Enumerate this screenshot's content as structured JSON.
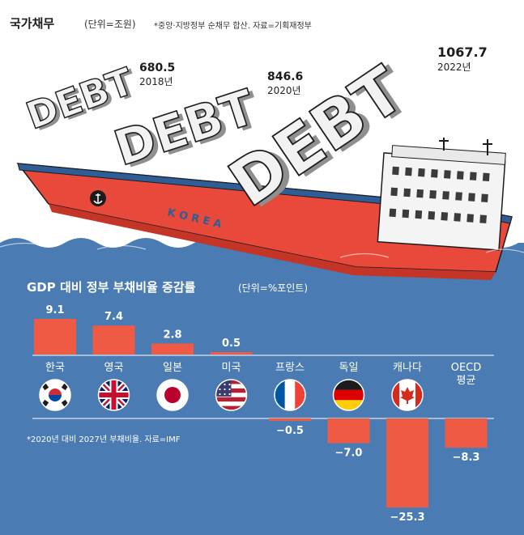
{
  "debt_panel": {
    "title": "국가채무",
    "unit": "(단위=조원)",
    "note": "*중앙·지방정부 순채무 합산. 자료=기획재정부",
    "word": "DEBT",
    "ship_label": "K O R E A"
  },
  "ratio_panel": {
    "title": "GDP 대비 정부 부채비율 증감률",
    "unit": "(단위=%포인트)",
    "source": "*2020년 대비 2027년 부채비율. 자료=IMF"
  },
  "colors": {
    "bar": "#ef5a45",
    "sea": "#4a7cb3",
    "hull": "#e8493a",
    "debt_letters": "#f2f2f2"
  },
  "chart_data": [
    {
      "type": "bar",
      "title": "국가채무",
      "categories": [
        "2018년",
        "2020년",
        "2022년"
      ],
      "values": [
        680.5,
        846.6,
        1067.7
      ],
      "value_labels": [
        "680.5",
        "846.6",
        "1067.7"
      ]
    },
    {
      "type": "bar",
      "title": "GDP 대비 정부 부채비율 증감률",
      "categories": [
        "한국",
        "영국",
        "일본",
        "미국",
        "프랑스",
        "독일",
        "캐나다",
        "OECD 평균"
      ],
      "values": [
        9.1,
        7.4,
        2.8,
        0.5,
        -0.5,
        -7.0,
        -25.3,
        -8.3
      ],
      "value_labels": [
        "9.1",
        "7.4",
        "2.8",
        "0.5",
        "−0.5",
        "−7.0",
        "−25.3",
        "−8.3"
      ],
      "flags": [
        "korea-flag-icon",
        "uk-flag-icon",
        "japan-flag-icon",
        "usa-flag-icon",
        "france-flag-icon",
        "germany-flag-icon",
        "canada-flag-icon",
        ""
      ]
    }
  ]
}
